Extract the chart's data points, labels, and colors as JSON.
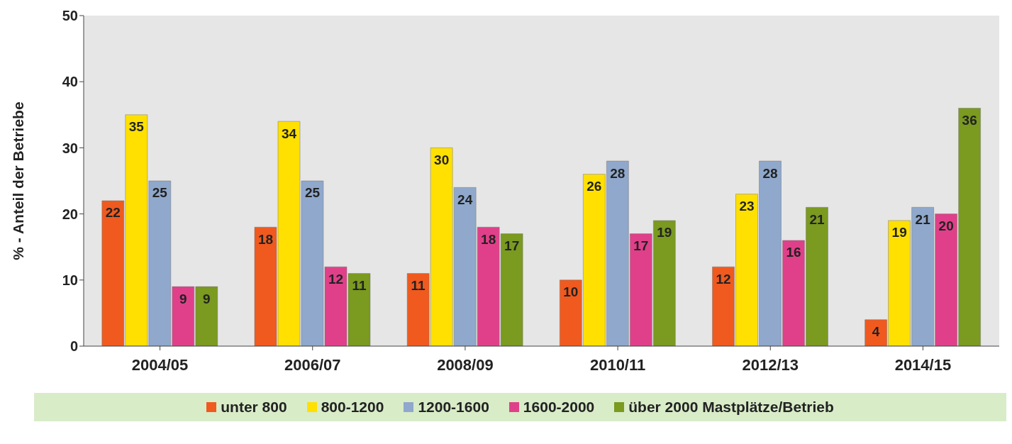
{
  "chart_data": {
    "type": "bar",
    "ylabel": "% - Anteil der Betriebe",
    "categories": [
      "2004/05",
      "2006/07",
      "2008/09",
      "2010/11",
      "2012/13",
      "2014/15"
    ],
    "series": [
      {
        "name": "unter 800",
        "color": "#f05a1e",
        "values": [
          22,
          18,
          11,
          10,
          12,
          4
        ]
      },
      {
        "name": "800-1200",
        "color": "#ffe000",
        "values": [
          35,
          34,
          30,
          26,
          23,
          19
        ]
      },
      {
        "name": "1200-1600",
        "color": "#8fa8cc",
        "values": [
          25,
          25,
          24,
          28,
          28,
          21
        ]
      },
      {
        "name": "1600-2000",
        "color": "#e0408a",
        "values": [
          9,
          12,
          18,
          17,
          16,
          20
        ]
      },
      {
        "name": "über 2000 Mastplätze/Betrieb",
        "color": "#7a9a20",
        "values": [
          9,
          11,
          17,
          19,
          21,
          36
        ]
      }
    ],
    "ylim": [
      0,
      50
    ],
    "yticks": [
      0,
      10,
      20,
      30,
      40,
      50
    ],
    "grid": false,
    "legend": "bottom",
    "data_labels": true
  }
}
